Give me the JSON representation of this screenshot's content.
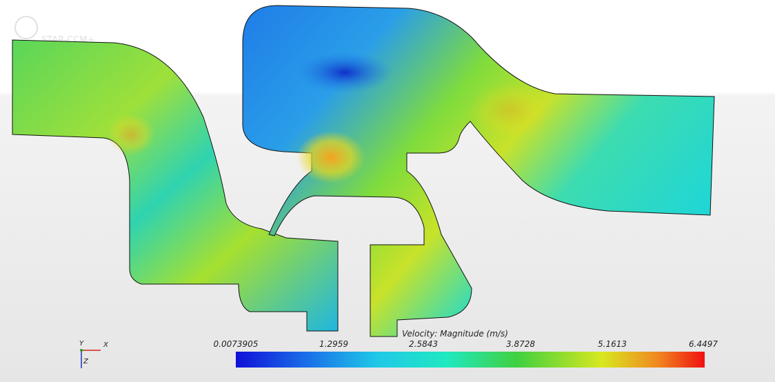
{
  "logo": "STAR-CCM+",
  "legend": {
    "title": "Velocity: Magnitude (m/s)",
    "ticks": [
      "0.0073905",
      "1.2959",
      "2.5843",
      "3.8728",
      "5.1613",
      "6.4497"
    ]
  },
  "triad": {
    "y": "Y",
    "x": "X",
    "z": "Z"
  }
}
